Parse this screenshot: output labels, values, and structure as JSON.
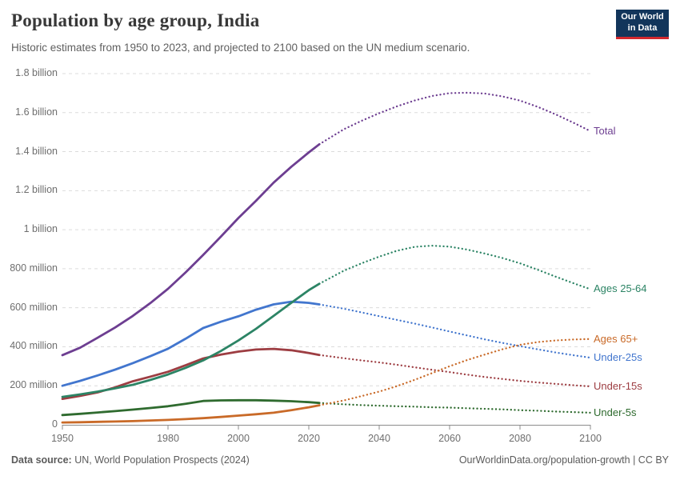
{
  "header": {
    "title": "Population by age group, India",
    "subtitle": "Historic estimates from 1950 to 2023, and projected to 2100 based on the UN medium scenario.",
    "logo": {
      "line1": "Our World",
      "line2": "in Data"
    }
  },
  "footer": {
    "source_label": "Data source:",
    "source_value": " UN, World Population Prospects (2024)",
    "citation": "OurWorldinData.org/population-growth | CC BY"
  },
  "chart_data": {
    "type": "line",
    "title": "Population by age group, India",
    "xlabel": "",
    "ylabel": "",
    "x_unit": "year",
    "y_unit": "people (millions)",
    "xlim": [
      1950,
      2100
    ],
    "ylim": [
      0,
      1800
    ],
    "grid": "horizontal-dashed",
    "legend_position": "right-end-labels",
    "historic_until": 2023,
    "projection_style": "dotted",
    "x_ticks": [
      1950,
      1980,
      2000,
      2020,
      2040,
      2060,
      2080,
      2100
    ],
    "y_ticks": [
      {
        "value": 0,
        "label": "0"
      },
      {
        "value": 200,
        "label": "200 million"
      },
      {
        "value": 400,
        "label": "400 million"
      },
      {
        "value": 600,
        "label": "600 million"
      },
      {
        "value": 800,
        "label": "800 million"
      },
      {
        "value": 1000,
        "label": "1 billion"
      },
      {
        "value": 1200,
        "label": "1.2 billion"
      },
      {
        "value": 1400,
        "label": "1.4 billion"
      },
      {
        "value": 1600,
        "label": "1.6 billion"
      },
      {
        "value": 1800,
        "label": "1.8 billion"
      }
    ],
    "x": [
      1950,
      1955,
      1960,
      1965,
      1970,
      1975,
      1980,
      1985,
      1990,
      1995,
      2000,
      2005,
      2010,
      2015,
      2020,
      2023,
      2030,
      2035,
      2040,
      2045,
      2050,
      2055,
      2060,
      2065,
      2070,
      2075,
      2080,
      2085,
      2090,
      2095,
      2100
    ],
    "series": [
      {
        "name": "Under-25s",
        "color": "#4276ce",
        "values": [
          200,
          225,
          253,
          283,
          316,
          352,
          390,
          441,
          496,
          528,
          556,
          590,
          617,
          631,
          625,
          617,
          595,
          576,
          557,
          538,
          519,
          499,
          478,
          458,
          438,
          420,
          403,
          387,
          371,
          357,
          344
        ]
      },
      {
        "name": "Under-15s",
        "color": "#9d3d42",
        "values": [
          133,
          148,
          166,
          192,
          223,
          247,
          272,
          305,
          340,
          360,
          375,
          386,
          389,
          382,
          368,
          358,
          341,
          330,
          320,
          308,
          295,
          282,
          270,
          257,
          245,
          235,
          225,
          217,
          210,
          203,
          197
        ]
      },
      {
        "name": "Under-5s",
        "color": "#2f6b2f",
        "values": [
          50,
          56,
          63,
          70,
          78,
          86,
          95,
          108,
          122,
          125,
          126,
          126,
          124,
          121,
          116,
          112,
          105,
          101,
          98,
          95,
          93,
          90,
          88,
          85,
          82,
          79,
          75,
          72,
          68,
          65,
          62
        ]
      },
      {
        "name": "Ages 65+",
        "color": "#c96a28",
        "values": [
          12,
          13,
          15,
          17,
          19,
          22,
          25,
          29,
          34,
          40,
          47,
          54,
          62,
          75,
          90,
          100,
          125,
          147,
          170,
          198,
          230,
          265,
          300,
          332,
          360,
          387,
          410,
          424,
          432,
          437,
          440
        ]
      },
      {
        "name": "Ages 25-64",
        "color": "#2c8465",
        "values": [
          143,
          156,
          170,
          187,
          205,
          230,
          258,
          292,
          330,
          378,
          432,
          492,
          558,
          625,
          690,
          723,
          790,
          828,
          862,
          892,
          912,
          918,
          913,
          898,
          878,
          855,
          828,
          795,
          760,
          727,
          695
        ]
      },
      {
        "name": "Total",
        "color": "#6d3e91",
        "values": [
          357,
          395,
          446,
          499,
          558,
          624,
          697,
          781,
          871,
          964,
          1060,
          1148,
          1241,
          1322,
          1396,
          1438,
          1515,
          1558,
          1597,
          1632,
          1662,
          1685,
          1700,
          1702,
          1698,
          1683,
          1662,
          1630,
          1592,
          1550,
          1505
        ]
      }
    ]
  }
}
